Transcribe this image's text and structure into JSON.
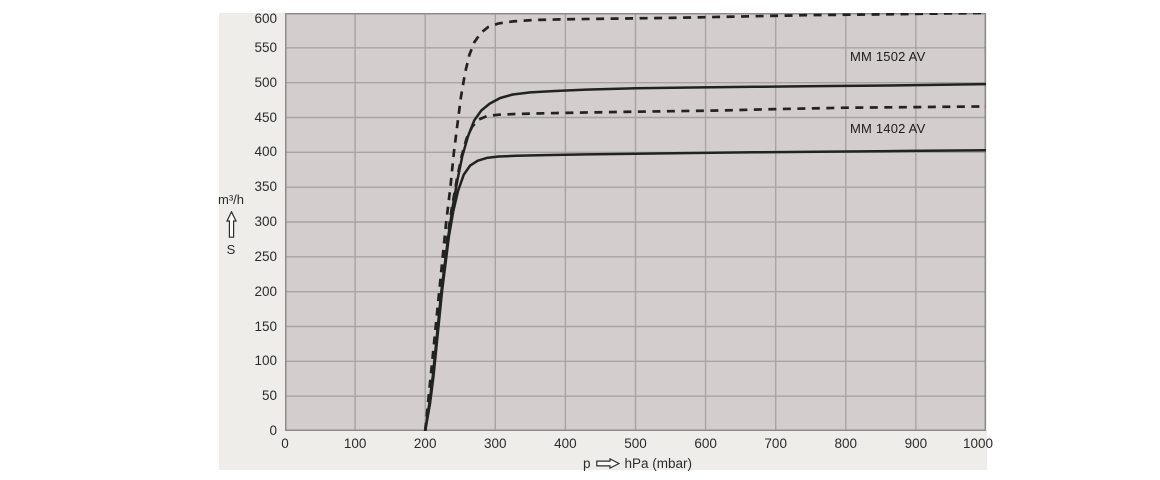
{
  "colors": {
    "page_bg": "#ffffff",
    "panel_bg": "#efedea",
    "plot_bg": "#d4cdcd",
    "grid": "#a8a4a4",
    "plot_border": "#8f8b8b",
    "curve": "#222222",
    "text": "#2b2b2b"
  },
  "y_axis": {
    "unit_label": "m³/h",
    "symbol": "S",
    "ticks": [
      600,
      550,
      500,
      450,
      400,
      350,
      300,
      250,
      200,
      150,
      100,
      50,
      0
    ]
  },
  "x_axis": {
    "prefix": "p",
    "unit": "hPa (mbar)",
    "ticks": [
      0,
      100,
      200,
      300,
      400,
      500,
      600,
      700,
      800,
      900,
      1000
    ]
  },
  "curve_labels": {
    "mm1502": "MM 1502 AV",
    "mm1402": "MM 1402 AV"
  },
  "chart_data": {
    "type": "line",
    "xlabel": "p  hPa (mbar)",
    "ylabel": "S  m³/h",
    "xlim": [
      0,
      1000
    ],
    "ylim": [
      0,
      600
    ],
    "grid": true,
    "x_tick_step": 100,
    "y_tick_step": 50,
    "legend_position": "inline-labels",
    "series": [
      {
        "id": "mm1502-dashed",
        "name": "MM 1502 AV (dashed)",
        "line_style": "dashed",
        "points": [
          [
            200,
            0
          ],
          [
            204,
            40
          ],
          [
            208,
            80
          ],
          [
            212,
            120
          ],
          [
            216,
            160
          ],
          [
            220,
            200
          ],
          [
            225,
            250
          ],
          [
            230,
            300
          ],
          [
            236,
            350
          ],
          [
            241,
            400
          ],
          [
            246,
            440
          ],
          [
            251,
            480
          ],
          [
            257,
            515
          ],
          [
            263,
            540
          ],
          [
            270,
            558
          ],
          [
            279,
            571
          ],
          [
            290,
            580
          ],
          [
            305,
            585
          ],
          [
            325,
            588
          ],
          [
            355,
            590
          ],
          [
            400,
            591
          ],
          [
            470,
            592
          ],
          [
            550,
            593
          ],
          [
            650,
            595
          ],
          [
            750,
            597
          ],
          [
            850,
            598
          ],
          [
            920,
            599
          ],
          [
            1000,
            600
          ]
        ]
      },
      {
        "id": "mm1402-dashed",
        "name": "MM 1402 AV (dashed)",
        "line_style": "dashed",
        "points": [
          [
            200,
            0
          ],
          [
            205,
            40
          ],
          [
            210,
            80
          ],
          [
            214,
            120
          ],
          [
            218,
            160
          ],
          [
            222,
            200
          ],
          [
            227,
            240
          ],
          [
            232,
            280
          ],
          [
            238,
            320
          ],
          [
            245,
            360
          ],
          [
            252,
            395
          ],
          [
            259,
            420
          ],
          [
            267,
            437
          ],
          [
            276,
            447
          ],
          [
            288,
            452
          ],
          [
            305,
            454
          ],
          [
            330,
            455
          ],
          [
            370,
            456
          ],
          [
            420,
            457
          ],
          [
            480,
            458
          ],
          [
            550,
            459
          ],
          [
            620,
            460
          ],
          [
            700,
            462
          ],
          [
            800,
            464
          ],
          [
            900,
            465
          ],
          [
            1000,
            466
          ]
        ]
      },
      {
        "id": "mm1502-solid",
        "name": "MM 1502 AV",
        "line_style": "solid",
        "points": [
          [
            200,
            0
          ],
          [
            206,
            40
          ],
          [
            211,
            80
          ],
          [
            215,
            120
          ],
          [
            219,
            160
          ],
          [
            223,
            200
          ],
          [
            228,
            240
          ],
          [
            233,
            280
          ],
          [
            239,
            320
          ],
          [
            246,
            360
          ],
          [
            253,
            395
          ],
          [
            261,
            423
          ],
          [
            270,
            446
          ],
          [
            280,
            460
          ],
          [
            292,
            470
          ],
          [
            307,
            478
          ],
          [
            325,
            483
          ],
          [
            350,
            486
          ],
          [
            385,
            488
          ],
          [
            430,
            490
          ],
          [
            500,
            492
          ],
          [
            580,
            493
          ],
          [
            670,
            494
          ],
          [
            760,
            495
          ],
          [
            860,
            496
          ],
          [
            1000,
            498
          ]
        ]
      },
      {
        "id": "mm1402-solid",
        "name": "MM 1402 AV",
        "line_style": "solid",
        "points": [
          [
            200,
            0
          ],
          [
            207,
            40
          ],
          [
            212,
            80
          ],
          [
            216,
            120
          ],
          [
            220,
            160
          ],
          [
            224,
            200
          ],
          [
            229,
            240
          ],
          [
            234,
            280
          ],
          [
            240,
            315
          ],
          [
            247,
            345
          ],
          [
            255,
            368
          ],
          [
            264,
            381
          ],
          [
            275,
            388
          ],
          [
            288,
            392
          ],
          [
            305,
            394
          ],
          [
            330,
            395
          ],
          [
            370,
            396
          ],
          [
            430,
            397
          ],
          [
            500,
            398
          ],
          [
            580,
            399
          ],
          [
            670,
            400
          ],
          [
            780,
            401
          ],
          [
            890,
            402
          ],
          [
            1000,
            403
          ]
        ]
      }
    ]
  }
}
